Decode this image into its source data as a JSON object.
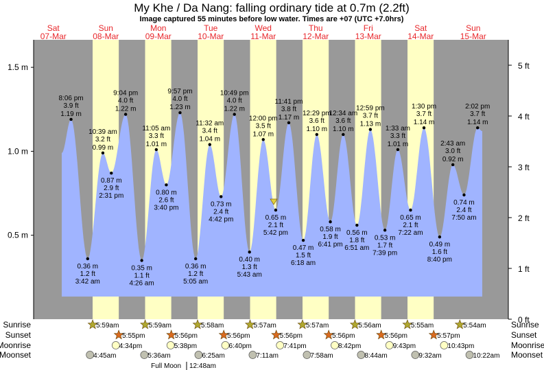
{
  "title": "My Khe / Da Nang: falling  ordinary tide at 0.7m (2.2ft)",
  "subtitle": "Image captured 55 minutes before low water. Times are +07 (UTC +7.0hrs)",
  "colors": {
    "night": "#999999",
    "day": "#ffffc4",
    "water": "#a0b4ff",
    "day_label": "#e8262a",
    "sun_rise": "#b0a830",
    "sun_set": "#d86a20",
    "moonrise": "#ffffc4",
    "moonset": "#c0c0b0",
    "marker": "#e0d040"
  },
  "days": [
    {
      "dow": "Sat",
      "date": "07-Mar"
    },
    {
      "dow": "Sun",
      "date": "08-Mar"
    },
    {
      "dow": "Mon",
      "date": "09-Mar"
    },
    {
      "dow": "Tue",
      "date": "10-Mar"
    },
    {
      "dow": "Wed",
      "date": "11-Mar"
    },
    {
      "dow": "Thu",
      "date": "12-Mar"
    },
    {
      "dow": "Fri",
      "date": "13-Mar"
    },
    {
      "dow": "Sat",
      "date": "14-Mar"
    },
    {
      "dow": "Sun",
      "date": "15-Mar"
    }
  ],
  "chart_data": {
    "type": "area",
    "title": "My Khe / Da Nang: falling  ordinary tide at 0.7m (2.2ft)",
    "ylabel_left": "m",
    "ylabel_right": "ft",
    "left_ticks": [
      "0.5 m",
      "1.0 m",
      "1.5 m"
    ],
    "left_tick_values": [
      0.5,
      1.0,
      1.5
    ],
    "right_ticks": [
      "0 ft",
      "1 ft",
      "2 ft",
      "3 ft",
      "4 ft",
      "5 ft"
    ],
    "right_tick_values": [
      0,
      1,
      2,
      3,
      4,
      5
    ],
    "ylim_m": [
      0,
      1.65
    ],
    "current": {
      "day": 4,
      "time": "4:47 pm",
      "height_m": 0.7
    },
    "tides": [
      {
        "day": 0,
        "time": "8:06 pm",
        "m": "1.19",
        "ft": "3.9",
        "type": "high"
      },
      {
        "day": 1,
        "time": "3:42 am",
        "m": "0.36",
        "ft": "1.2",
        "type": "low"
      },
      {
        "day": 1,
        "time": "10:39 am",
        "m": "0.99",
        "ft": "3.2",
        "type": "high"
      },
      {
        "day": 1,
        "time": "2:31 pm",
        "m": "0.87",
        "ft": "2.9",
        "type": "low"
      },
      {
        "day": 1,
        "time": "9:04 pm",
        "m": "1.22",
        "ft": "4.0",
        "type": "high"
      },
      {
        "day": 2,
        "time": "4:26 am",
        "m": "0.35",
        "ft": "1.1",
        "type": "low"
      },
      {
        "day": 2,
        "time": "11:05 am",
        "m": "1.01",
        "ft": "3.3",
        "type": "high"
      },
      {
        "day": 2,
        "time": "3:40 pm",
        "m": "0.80",
        "ft": "2.6",
        "type": "low"
      },
      {
        "day": 2,
        "time": "9:57 pm",
        "m": "1.23",
        "ft": "4.0",
        "type": "high"
      },
      {
        "day": 3,
        "time": "5:05 am",
        "m": "0.36",
        "ft": "1.2",
        "type": "low"
      },
      {
        "day": 3,
        "time": "11:32 am",
        "m": "1.04",
        "ft": "3.4",
        "type": "high"
      },
      {
        "day": 3,
        "time": "4:42 pm",
        "m": "0.73",
        "ft": "2.4",
        "type": "low"
      },
      {
        "day": 3,
        "time": "10:49 pm",
        "m": "1.22",
        "ft": "4.0",
        "type": "high"
      },
      {
        "day": 4,
        "time": "5:43 am",
        "m": "0.40",
        "ft": "1.3",
        "type": "low"
      },
      {
        "day": 4,
        "time": "12:00 pm",
        "m": "1.07",
        "ft": "3.5",
        "type": "high"
      },
      {
        "day": 4,
        "time": "5:42 pm",
        "m": "0.65",
        "ft": "2.1",
        "type": "low"
      },
      {
        "day": 4,
        "time": "11:41 pm",
        "m": "1.17",
        "ft": "3.8",
        "type": "high"
      },
      {
        "day": 5,
        "time": "6:18 am",
        "m": "0.47",
        "ft": "1.5",
        "type": "low"
      },
      {
        "day": 5,
        "time": "12:29 pm",
        "m": "1.10",
        "ft": "3.6",
        "type": "high"
      },
      {
        "day": 5,
        "time": "6:41 pm",
        "m": "0.58",
        "ft": "1.9",
        "type": "low"
      },
      {
        "day": 6,
        "time": "12:34 am",
        "m": "1.10",
        "ft": "3.6",
        "type": "high"
      },
      {
        "day": 6,
        "time": "6:51 am",
        "m": "0.56",
        "ft": "1.8",
        "type": "low"
      },
      {
        "day": 6,
        "time": "12:59 pm",
        "m": "1.13",
        "ft": "3.7",
        "type": "high"
      },
      {
        "day": 6,
        "time": "7:39 pm",
        "m": "0.53",
        "ft": "1.7",
        "type": "low"
      },
      {
        "day": 7,
        "time": "1:33 am",
        "m": "1.01",
        "ft": "3.3",
        "type": "high"
      },
      {
        "day": 7,
        "time": "7:22 am",
        "m": "0.65",
        "ft": "2.1",
        "type": "low"
      },
      {
        "day": 7,
        "time": "1:30 pm",
        "m": "1.14",
        "ft": "3.7",
        "type": "high"
      },
      {
        "day": 7,
        "time": "8:40 pm",
        "m": "0.49",
        "ft": "1.6",
        "type": "low"
      },
      {
        "day": 8,
        "time": "2:43 am",
        "m": "0.92",
        "ft": "3.0",
        "type": "high"
      },
      {
        "day": 8,
        "time": "7:50 am",
        "m": "0.74",
        "ft": "2.4",
        "type": "low"
      },
      {
        "day": 8,
        "time": "2:02 pm",
        "m": "1.14",
        "ft": "3.7",
        "type": "high"
      }
    ]
  },
  "rows": {
    "labels": [
      "Sunrise",
      "Sunset",
      "Moonrise",
      "Moonset"
    ],
    "sunrise": [
      {
        "day": 1,
        "time": "5:59am"
      },
      {
        "day": 2,
        "time": "5:59am"
      },
      {
        "day": 3,
        "time": "5:58am"
      },
      {
        "day": 4,
        "time": "5:57am"
      },
      {
        "day": 5,
        "time": "5:57am"
      },
      {
        "day": 6,
        "time": "5:56am"
      },
      {
        "day": 7,
        "time": "5:55am"
      },
      {
        "day": 8,
        "time": "5:54am"
      }
    ],
    "sunset": [
      {
        "day": 1,
        "time": "5:55pm"
      },
      {
        "day": 2,
        "time": "5:56pm"
      },
      {
        "day": 3,
        "time": "5:56pm"
      },
      {
        "day": 4,
        "time": "5:56pm"
      },
      {
        "day": 5,
        "time": "5:56pm"
      },
      {
        "day": 6,
        "time": "5:56pm"
      },
      {
        "day": 7,
        "time": "5:57pm"
      }
    ],
    "moonrise": [
      {
        "day": 1,
        "time": "4:34pm"
      },
      {
        "day": 2,
        "time": "5:38pm"
      },
      {
        "day": 3,
        "time": "6:40pm"
      },
      {
        "day": 4,
        "time": "7:41pm"
      },
      {
        "day": 5,
        "time": "8:42pm"
      },
      {
        "day": 6,
        "time": "9:43pm"
      },
      {
        "day": 7,
        "time": "10:43pm"
      }
    ],
    "moonset": [
      {
        "day": 1,
        "time": "4:45am"
      },
      {
        "day": 2,
        "time": "5:36am"
      },
      {
        "day": 3,
        "time": "6:25am"
      },
      {
        "day": 4,
        "time": "7:11am"
      },
      {
        "day": 5,
        "time": "7:58am"
      },
      {
        "day": 6,
        "time": "8:44am"
      },
      {
        "day": 7,
        "time": "9:32am"
      },
      {
        "day": 8,
        "time": "10:22am"
      }
    ],
    "full_moon_label": "Full Moon",
    "full_moon_time": "12:48am"
  }
}
